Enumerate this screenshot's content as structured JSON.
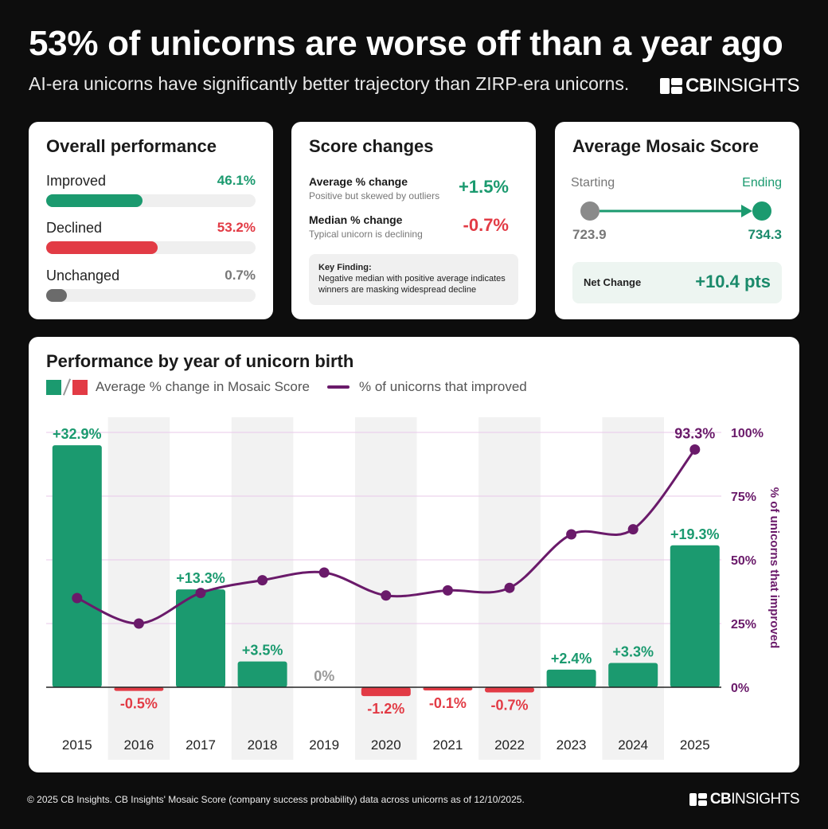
{
  "header": {
    "title": "53% of unicorns are worse off than a year ago",
    "subtitle": "AI-era unicorns have significantly better trajectory than ZIRP-era unicorns.",
    "logo_bold": "CB",
    "logo_light": "INSIGHTS"
  },
  "colors": {
    "green": "#1b9a6f",
    "red": "#e23b45",
    "gray": "#666666",
    "purple": "#6a1a6a"
  },
  "overall": {
    "title": "Overall performance",
    "rows": [
      {
        "label": "Improved",
        "value": "46.1%",
        "pct": 46.1,
        "color": "#1b9a6f"
      },
      {
        "label": "Declined",
        "value": "53.2%",
        "pct": 53.2,
        "color": "#e23b45"
      },
      {
        "label": "Unchanged",
        "value": "0.7%",
        "pct": 0.7,
        "color": "#6b6b6b"
      }
    ]
  },
  "score_changes": {
    "title": "Score changes",
    "average_label": "Average % change",
    "average_sub": "Positive but skewed by outliers",
    "average_value": "+1.5%",
    "median_label": "Median % change",
    "median_sub": "Typical unicorn is declining",
    "median_value": "-0.7%",
    "finding_title": "Key Finding:",
    "finding_text": "Negative median with positive average indicates winners are masking widespread decline"
  },
  "mosaic": {
    "title": "Average Mosaic Score",
    "start_label": "Starting",
    "end_label": "Ending",
    "start_value": "723.9",
    "end_value": "734.3",
    "net_label": "Net Change",
    "net_value": "+10.4 pts"
  },
  "chart_data": {
    "type": "bar",
    "title": "Performance by year of unicorn birth",
    "legend_bar": "Average % change in Mosaic Score",
    "legend_line": "% of unicorns that improved",
    "categories": [
      "2015",
      "2016",
      "2017",
      "2018",
      "2019",
      "2020",
      "2021",
      "2022",
      "2023",
      "2024",
      "2025"
    ],
    "series": [
      {
        "name": "Average % change in Mosaic Score",
        "type": "bar",
        "values": [
          32.9,
          -0.5,
          13.3,
          3.5,
          0,
          -1.2,
          -0.1,
          -0.7,
          2.4,
          3.3,
          19.3
        ],
        "labels": [
          "+32.9%",
          "-0.5%",
          "+13.3%",
          "+3.5%",
          "0%",
          "-1.2%",
          "-0.1%",
          "-0.7%",
          "+2.4%",
          "+3.3%",
          "+19.3%"
        ]
      },
      {
        "name": "% of unicorns that improved",
        "type": "line",
        "axis": "right",
        "values": [
          35,
          25,
          37,
          42,
          45,
          36,
          38,
          39,
          60,
          62,
          93.3
        ]
      }
    ],
    "line_annotation": "93.3%",
    "right_axis": {
      "label": "% of unicorns that improved",
      "ticks": [
        "0%",
        "25%",
        "50%",
        "75%",
        "100%"
      ],
      "range": [
        0,
        100
      ]
    },
    "bar_range": [
      0,
      34
    ]
  },
  "footer": {
    "text": "© 2025 CB Insights. CB Insights' Mosaic Score (company success probability) data across unicorns as of 12/10/2025."
  }
}
